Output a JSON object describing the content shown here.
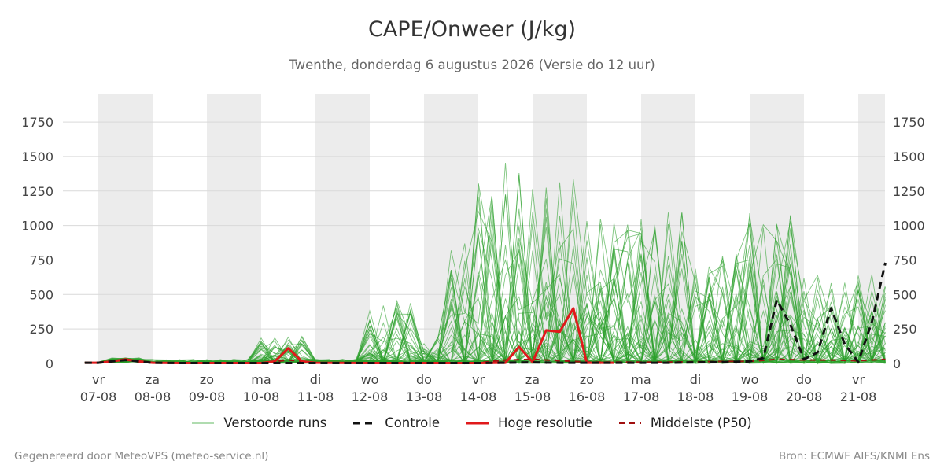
{
  "chart_data": {
    "type": "line",
    "title": "CAPE/Onweer (J/kg)",
    "subtitle": "Twenthe, donderdag  6 augustus 2026 (Versie do 12 uur)",
    "ylim": [
      0,
      1950
    ],
    "yticks": [
      0,
      250,
      500,
      750,
      1000,
      1250,
      1500,
      1750
    ],
    "x_range_days": [
      -0.25,
      14.5
    ],
    "x_ticks": [
      {
        "day": "vr",
        "date": "07-08"
      },
      {
        "day": "za",
        "date": "08-08"
      },
      {
        "day": "zo",
        "date": "09-08"
      },
      {
        "day": "ma",
        "date": "10-08"
      },
      {
        "day": "di",
        "date": "11-08"
      },
      {
        "day": "wo",
        "date": "12-08"
      },
      {
        "day": "do",
        "date": "13-08"
      },
      {
        "day": "vr",
        "date": "14-08"
      },
      {
        "day": "za",
        "date": "15-08"
      },
      {
        "day": "zo",
        "date": "16-08"
      },
      {
        "day": "ma",
        "date": "17-08"
      },
      {
        "day": "di",
        "date": "18-08"
      },
      {
        "day": "wo",
        "date": "19-08"
      },
      {
        "day": "do",
        "date": "20-08"
      },
      {
        "day": "vr",
        "date": "21-08"
      }
    ],
    "shaded_days": [
      0,
      2,
      4,
      6,
      8,
      10,
      12,
      14
    ],
    "series": [
      {
        "name": "Controle",
        "color": "#111111",
        "style": "dashed",
        "x": [
          -0.25,
          0,
          0.25,
          0.5,
          0.75,
          1,
          1.5,
          2,
          2.5,
          3,
          3.5,
          4,
          5,
          6,
          7,
          7.5,
          8,
          8.5,
          9,
          9.5,
          10,
          10.5,
          11,
          11.5,
          12,
          12.25,
          12.5,
          12.75,
          13,
          13.25,
          13.5,
          13.75,
          14,
          14.25,
          14.5
        ],
        "y": [
          5,
          5,
          15,
          25,
          15,
          5,
          3,
          3,
          3,
          3,
          3,
          3,
          3,
          3,
          3,
          5,
          8,
          5,
          5,
          5,
          5,
          5,
          8,
          10,
          15,
          40,
          460,
          280,
          30,
          80,
          400,
          140,
          10,
          300,
          730
        ]
      },
      {
        "name": "Hoge resolutie",
        "color": "#e0191b",
        "style": "solid",
        "x": [
          -0.25,
          0,
          0.25,
          0.5,
          0.75,
          1,
          1.5,
          2,
          2.5,
          3,
          3.25,
          3.5,
          3.75,
          4,
          5,
          6,
          7,
          7.5,
          7.75,
          8,
          8.25,
          8.5,
          8.75,
          9,
          9.25,
          9.5
        ],
        "y": [
          5,
          5,
          15,
          30,
          15,
          5,
          3,
          3,
          3,
          3,
          15,
          110,
          15,
          5,
          3,
          3,
          3,
          5,
          120,
          10,
          240,
          230,
          400,
          5,
          5,
          5
        ]
      },
      {
        "name": "Middelste (P50)",
        "color": "#a01010",
        "style": "dashed",
        "x": [
          -0.25,
          0,
          0.25,
          0.5,
          0.75,
          1,
          1.5,
          2,
          3,
          3.5,
          4,
          5,
          6,
          7,
          7.5,
          8,
          8.5,
          9,
          9.5,
          10,
          10.5,
          11,
          11.5,
          12,
          12.5,
          13,
          13.5,
          14,
          14.5
        ],
        "y": [
          5,
          5,
          15,
          25,
          12,
          5,
          3,
          3,
          3,
          25,
          5,
          3,
          3,
          5,
          25,
          30,
          20,
          10,
          10,
          10,
          10,
          12,
          15,
          15,
          30,
          25,
          25,
          20,
          30
        ]
      }
    ],
    "ensemble": {
      "name": "Verstoorde runs",
      "color": "#2ca02c",
      "members": 50
    }
  },
  "legend": [
    {
      "key": "ensemble",
      "label": "Verstoorde runs"
    },
    {
      "key": "control",
      "label": "Controle"
    },
    {
      "key": "hires",
      "label": "Hoge resolutie"
    },
    {
      "key": "p50",
      "label": "Middelste (P50)"
    }
  ],
  "footer": {
    "left": "Gegenereerd door MeteoVPS (meteo-service.nl)",
    "right": "Bron: ECMWF AIFS/KNMI Ens"
  }
}
